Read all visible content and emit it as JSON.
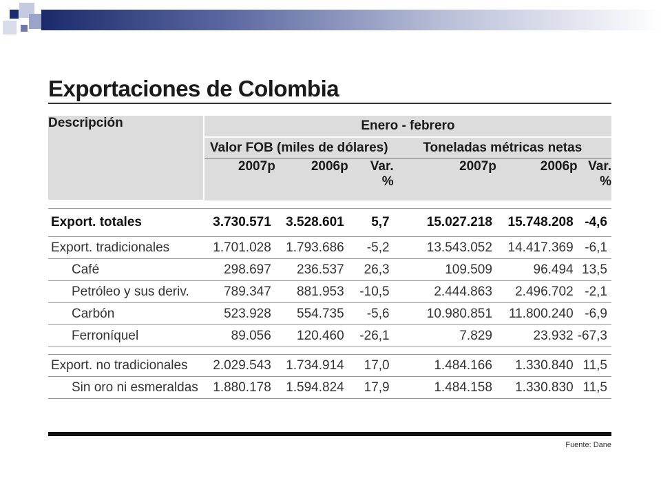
{
  "title": "Exportaciones de Colombia",
  "header": {
    "descripcion": "Descripción",
    "periodo": "Enero - febrero",
    "grupo_valor": "Valor FOB (miles de dólares)",
    "grupo_toneladas": "Toneladas métricas netas",
    "col_2007": "2007p",
    "col_2006": "2006p",
    "col_var": "Var.",
    "col_pct": "%"
  },
  "rows": [
    {
      "desc": "Export. totales",
      "fob_2007": "3.730.571",
      "fob_2006": "3.528.601",
      "fob_var": "5,7",
      "ton_2007": "15.027.218",
      "ton_2006": "15.748.208",
      "ton_var": "-4,6"
    },
    {
      "desc": "Export. tradicionales",
      "fob_2007": "1.701.028",
      "fob_2006": "1.793.686",
      "fob_var": "-5,2",
      "ton_2007": "13.543.052",
      "ton_2006": "14.417.369",
      "ton_var": "-6,1"
    },
    {
      "desc": "Café",
      "fob_2007": "298.697",
      "fob_2006": "236.537",
      "fob_var": "26,3",
      "ton_2007": "109.509",
      "ton_2006": "96.494",
      "ton_var": "13,5"
    },
    {
      "desc": "Petróleo y sus deriv.",
      "fob_2007": "789.347",
      "fob_2006": "881.953",
      "fob_var": "-10,5",
      "ton_2007": "2.444.863",
      "ton_2006": "2.496.702",
      "ton_var": "-2,1"
    },
    {
      "desc": "Carbón",
      "fob_2007": "523.928",
      "fob_2006": "554.735",
      "fob_var": "-5,6",
      "ton_2007": "10.980.851",
      "ton_2006": "11.800.240",
      "ton_var": "-6,9"
    },
    {
      "desc": "Ferroníquel",
      "fob_2007": "89.056",
      "fob_2006": "120.460",
      "fob_var": "-26,1",
      "ton_2007": "7.829",
      "ton_2006": "23.932",
      "ton_var": "-67,3"
    },
    {
      "desc": "Export. no tradicionales",
      "fob_2007": "2.029.543",
      "fob_2006": "1.734.914",
      "fob_var": "17,0",
      "ton_2007": "1.484.166",
      "ton_2006": "1.330.840",
      "ton_var": "11,5"
    },
    {
      "desc": "Sin oro ni esmeraldas",
      "fob_2007": "1.880.178",
      "fob_2006": "1.594.824",
      "fob_var": "17,9",
      "ton_2007": "1.484.158",
      "ton_2006": "1.330.830",
      "ton_var": "11,5"
    }
  ],
  "source": "Fuente: Dane"
}
